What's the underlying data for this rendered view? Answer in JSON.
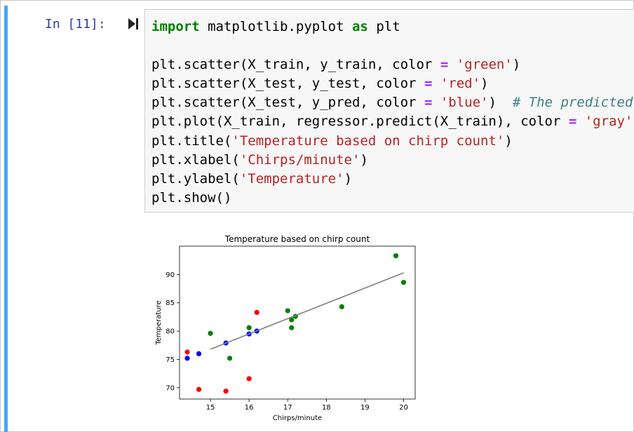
{
  "cell": {
    "prompt": "In [11]:",
    "run_icon": "run-step-icon",
    "code_lines": [
      [
        {
          "t": "import",
          "c": "kw"
        },
        {
          "t": " matplotlib.pyplot ",
          "c": ""
        },
        {
          "t": "as",
          "c": "kw"
        },
        {
          "t": " plt",
          "c": ""
        }
      ],
      [],
      [
        {
          "t": "plt.scatter(X_train, y_train, color ",
          "c": ""
        },
        {
          "t": "=",
          "c": "op"
        },
        {
          "t": " ",
          "c": ""
        },
        {
          "t": "'green'",
          "c": "str"
        },
        {
          "t": ")",
          "c": ""
        }
      ],
      [
        {
          "t": "plt.scatter(X_test, y_test, color ",
          "c": ""
        },
        {
          "t": "=",
          "c": "op"
        },
        {
          "t": " ",
          "c": ""
        },
        {
          "t": "'red'",
          "c": "str"
        },
        {
          "t": ")",
          "c": ""
        }
      ],
      [
        {
          "t": "plt.scatter(X_test, y_pred, color ",
          "c": ""
        },
        {
          "t": "=",
          "c": "op"
        },
        {
          "t": " ",
          "c": ""
        },
        {
          "t": "'blue'",
          "c": "str"
        },
        {
          "t": ")  ",
          "c": ""
        },
        {
          "t": "# The predicted te",
          "c": "cm"
        }
      ],
      [
        {
          "t": "plt.plot(X_train, regressor.predict(X_train), color ",
          "c": ""
        },
        {
          "t": "=",
          "c": "op"
        },
        {
          "t": " ",
          "c": ""
        },
        {
          "t": "'gray'",
          "c": "str"
        },
        {
          "t": ")",
          "c": ""
        }
      ],
      [
        {
          "t": "plt.title(",
          "c": ""
        },
        {
          "t": "'Temperature based on chirp count'",
          "c": "str"
        },
        {
          "t": ")",
          "c": ""
        }
      ],
      [
        {
          "t": "plt.xlabel(",
          "c": ""
        },
        {
          "t": "'Chirps/minute'",
          "c": "str"
        },
        {
          "t": ")",
          "c": ""
        }
      ],
      [
        {
          "t": "plt.ylabel(",
          "c": ""
        },
        {
          "t": "'Temperature'",
          "c": "str"
        },
        {
          "t": ")",
          "c": ""
        }
      ],
      [
        {
          "t": "plt.show()",
          "c": ""
        }
      ]
    ]
  },
  "chart_data": {
    "type": "scatter",
    "title": "Temperature based on chirp count",
    "xlabel": "Chirps/minute",
    "ylabel": "Temperature",
    "xlim": [
      14.2,
      20.3
    ],
    "ylim": [
      68.0,
      95.0
    ],
    "xticks": [
      15,
      16,
      17,
      18,
      19,
      20
    ],
    "yticks": [
      70,
      75,
      80,
      85,
      90
    ],
    "series": [
      {
        "color": "#008000",
        "points": [
          [
            15.0,
            79.6
          ],
          [
            15.5,
            75.2
          ],
          [
            16.0,
            80.6
          ],
          [
            17.0,
            83.6
          ],
          [
            17.1,
            82.0
          ],
          [
            17.1,
            80.6
          ],
          [
            17.2,
            82.6
          ],
          [
            18.4,
            84.3
          ],
          [
            19.8,
            93.3
          ],
          [
            20.0,
            88.6
          ]
        ]
      },
      {
        "color": "#ff0000",
        "points": [
          [
            14.4,
            76.3
          ],
          [
            14.7,
            69.7
          ],
          [
            15.4,
            69.4
          ],
          [
            16.0,
            71.6
          ],
          [
            16.2,
            83.3
          ]
        ]
      },
      {
        "color": "#0000ff",
        "points": [
          [
            14.4,
            75.2
          ],
          [
            14.7,
            76.0
          ],
          [
            15.4,
            77.9
          ],
          [
            16.0,
            79.5
          ],
          [
            16.2,
            80.0
          ]
        ]
      }
    ],
    "line": {
      "color": "#808080",
      "points": [
        [
          15.0,
          76.8
        ],
        [
          20.0,
          90.3
        ]
      ]
    }
  }
}
